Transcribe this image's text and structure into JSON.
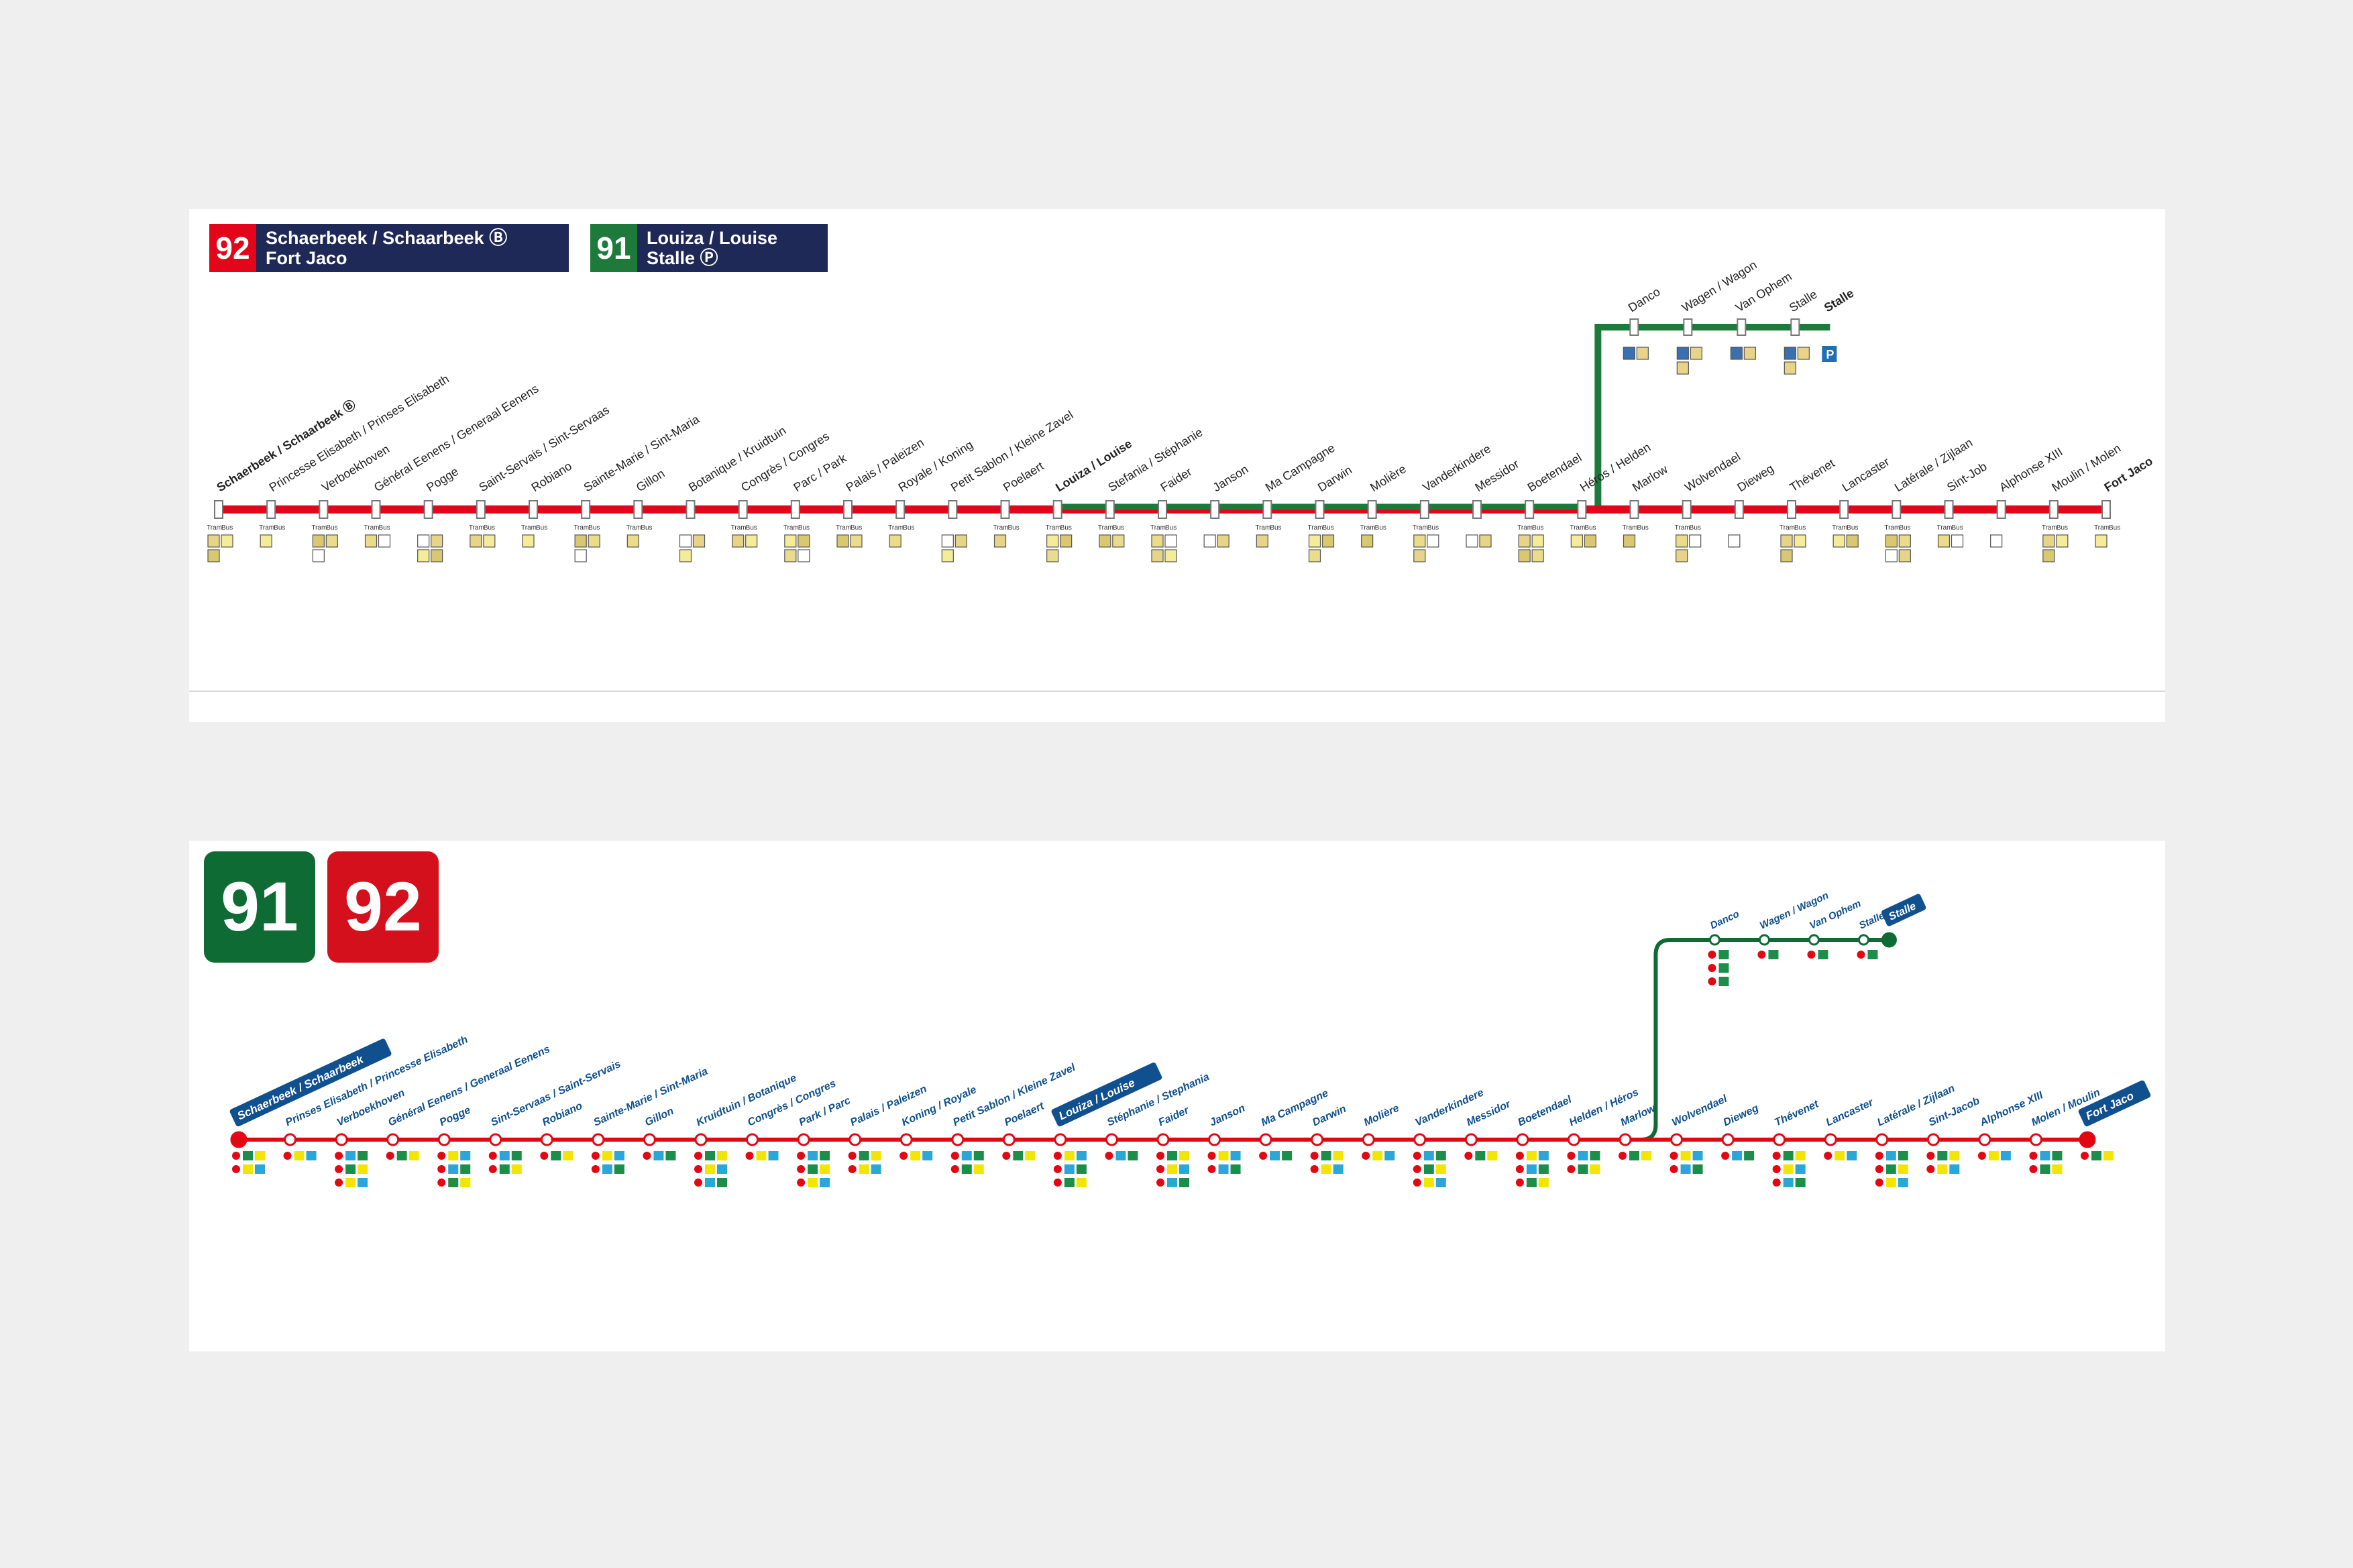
{
  "colors": {
    "red": "#e3061a",
    "green": "#1d7a3a",
    "navy": "#1f2957",
    "brand_blue": "#10508f"
  },
  "old_map": {
    "header_92": {
      "number": "92",
      "text": "Schaerbeek / Schaarbeek Ⓑ\nFort Jaco"
    },
    "header_91": {
      "number": "91",
      "text": "Louiza / Louise\nStalle Ⓟ"
    },
    "main_stops": [
      "Schaerbeek / Schaarbeek Ⓑ",
      "Princesse Elisabeth / Prinses Elisabeth",
      "Verboekhoven",
      "Général Eenens / Generaal Eenens",
      "Pogge",
      "Saint-Servais / Sint-Servaas",
      "Robiano",
      "Sainte-Marie / Sint-Maria",
      "Gillon",
      "Botanique / Kruidtuin",
      "Congrès / Congres",
      "Parc / Park",
      "Palais / Paleizen",
      "Royale / Koning",
      "Petit Sablon / Kleine Zavel",
      "Poelaert",
      "Louiza / Louise",
      "Stefania / Stéphanie",
      "Faider",
      "Janson",
      "Ma Campagne",
      "Darwin",
      "Molière",
      "Vanderkindere",
      "Messidor",
      "Boetendael",
      "Héros / Helden",
      "Marlow",
      "Wolvendael",
      "Dieweg",
      "Thévenet",
      "Lancaster",
      "Latérale / Zijlaan",
      "Sint-Job",
      "Alphonse XIII",
      "Moulin / Molen",
      "Fort Jaco"
    ],
    "branch_stops": [
      "Danco",
      "Wagen / Wagon",
      "Van Ophem",
      "Stalle",
      "Stalle"
    ],
    "transfer_labels": {
      "tram": "Tram",
      "bus": "Bus"
    }
  },
  "new_map": {
    "badges": [
      "91",
      "92"
    ],
    "main_stops": [
      "Schaerbeek / Schaarbeek",
      "Prinses Elisabeth / Princesse Elisabeth",
      "Verboekhoven",
      "Général Eenens / Generaal Eenens",
      "Pogge",
      "Sint-Servaas / Saint-Servais",
      "Robiano",
      "Sainte-Marie / Sint-Maria",
      "Gillon",
      "Kruidtuin / Botanique",
      "Congrès / Congres",
      "Park / Parc",
      "Palais / Paleizen",
      "Koning / Royale",
      "Petit Sablon / Kleine Zavel",
      "Poelaert",
      "Louiza / Louise",
      "Stéphanie / Stephania",
      "Faider",
      "Janson",
      "Ma Campagne",
      "Darwin",
      "Molière",
      "Vanderkindere",
      "Messidor",
      "Boetendael",
      "Helden / Héros",
      "Marlow",
      "Wolvendael",
      "Dieweg",
      "Thévenet",
      "Lancaster",
      "Latérale / Zijlaan",
      "Sint-Jacob",
      "Alphonse XIII",
      "Molen / Moulin",
      "Fort Jaco"
    ],
    "branch_stops": [
      "Danco",
      "Wagen / Wagon",
      "Van Ophem",
      "Stalle",
      "Stalle"
    ]
  }
}
